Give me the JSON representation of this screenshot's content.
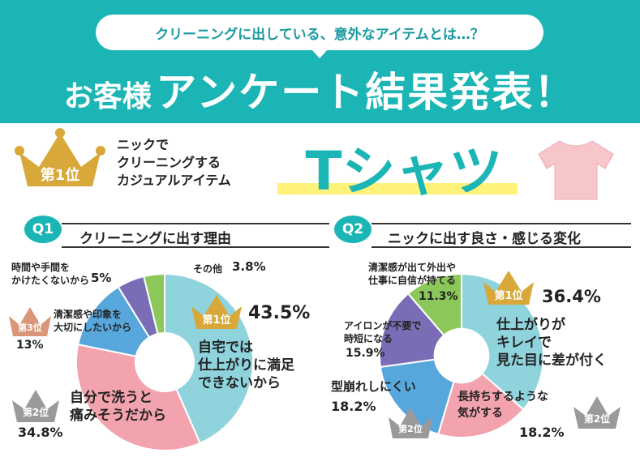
{
  "header": {
    "question": "クリーニングに出している、意外なアイテムとは…？",
    "title_small": "お客様",
    "title_big": "アンケート結果発表！"
  },
  "rank1": {
    "badge": "第1位",
    "desc": "ニックで\nクリーニングする\nカジュアルアイテム",
    "item": "Tシャツ"
  },
  "q1": {
    "badge": "Q1",
    "title": "クリーニングに出す理由",
    "slices": [
      {
        "label": "自宅では\n仕上がりに満足\nできないから",
        "percent": "43.5%",
        "value": 43.5,
        "rank": "第1位",
        "color": "#8fd3dd"
      },
      {
        "label": "自分で洗うと\n痛みそうだから",
        "percent": "34.8%",
        "value": 34.8,
        "rank": "第2位",
        "color": "#f3a3ad"
      },
      {
        "label": "清潔感や印象を\n大切にしたいから",
        "percent": "13%",
        "value": 13.0,
        "rank": "第3位",
        "color": "#58a7dc"
      },
      {
        "label": "時間や手間を\nかけたくないから",
        "percent": "5%",
        "value": 5.0,
        "rank": "",
        "color": "#7b6db5"
      },
      {
        "label": "その他",
        "percent": "3.8%",
        "value": 3.8,
        "rank": "",
        "color": "#8cc75a"
      }
    ]
  },
  "q2": {
    "badge": "Q2",
    "title": "ニックに出す良さ・感じる変化",
    "slices": [
      {
        "label": "仕上がりが\nキレイで\n見た目に差が付く",
        "percent": "36.4%",
        "value": 36.4,
        "rank": "第1位",
        "color": "#8fd3dd"
      },
      {
        "label": "長持ちするような\n気がする",
        "percent": "18.2%",
        "value": 18.2,
        "rank": "第2位",
        "color": "#f3a3ad"
      },
      {
        "label": "型崩れしにくい",
        "percent": "18.2%",
        "value": 18.2,
        "rank": "第2位",
        "color": "#58a7dc"
      },
      {
        "label": "アイロンが不要で\n時短になる",
        "percent": "15.9%",
        "value": 15.9,
        "rank": "",
        "color": "#7b6db5"
      },
      {
        "label": "清潔感が出て外出や\n仕事に自信が持てる",
        "percent": "11.3%",
        "value": 11.3,
        "rank": "",
        "color": "#8cc75a"
      }
    ]
  },
  "colors": {
    "teal": "#1bb5b5",
    "gold": "#d8a83a",
    "silver": "#9a9a9a",
    "bronze": "#d9967a",
    "yellow": "#fff27a"
  },
  "icons": {
    "crown": "crown-icon",
    "tshirt": "tshirt-icon"
  }
}
